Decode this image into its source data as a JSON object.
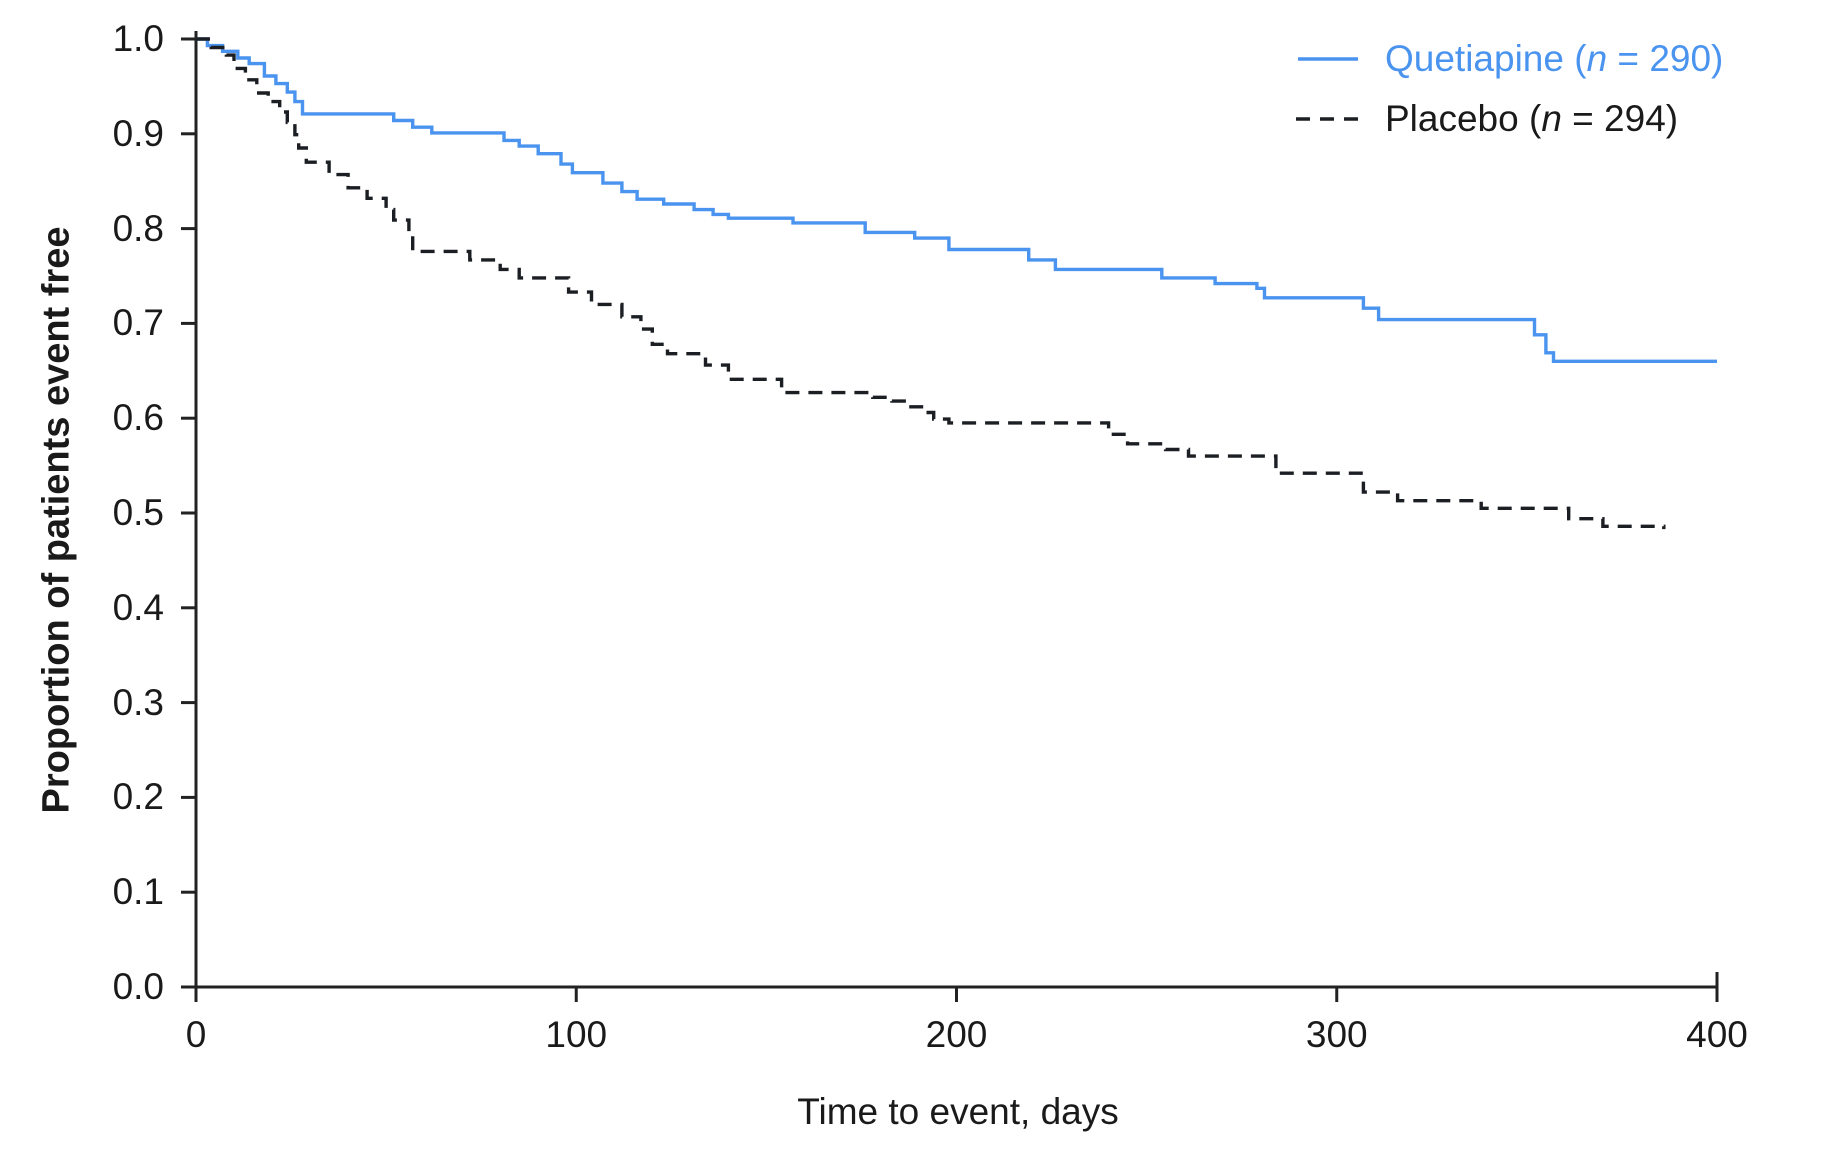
{
  "chart_data": {
    "type": "line",
    "subtype": "kaplan-meier-step",
    "title": "",
    "xlabel": "Time to event, days",
    "ylabel": "Proportion of patients event free",
    "xlim": [
      0,
      400
    ],
    "ylim": [
      0.0,
      1.0
    ],
    "x_tick_labels": [
      "0",
      "100",
      "200",
      "300",
      "400"
    ],
    "y_tick_labels": [
      "0.0",
      "0.1",
      "0.2",
      "0.3",
      "0.4",
      "0.5",
      "0.6",
      "0.7",
      "0.8",
      "0.9",
      "1.0"
    ],
    "grid": false,
    "legend_position": "top-right",
    "series": [
      {
        "name": "Quetiapine",
        "n": 290,
        "label": "Quetiapine (n = 290)",
        "color": "#4a94ef",
        "line_style": "solid",
        "points": [
          [
            0,
            1.0
          ],
          [
            3,
            0.993
          ],
          [
            7,
            0.987
          ],
          [
            11,
            0.98
          ],
          [
            14,
            0.974
          ],
          [
            18,
            0.961
          ],
          [
            21,
            0.953
          ],
          [
            24,
            0.944
          ],
          [
            26,
            0.934
          ],
          [
            28,
            0.921
          ],
          [
            52,
            0.914
          ],
          [
            57,
            0.907
          ],
          [
            62,
            0.901
          ],
          [
            81,
            0.893
          ],
          [
            85,
            0.887
          ],
          [
            90,
            0.879
          ],
          [
            96,
            0.868
          ],
          [
            99,
            0.859
          ],
          [
            107,
            0.848
          ],
          [
            112,
            0.839
          ],
          [
            116,
            0.831
          ],
          [
            123,
            0.826
          ],
          [
            131,
            0.82
          ],
          [
            136,
            0.815
          ],
          [
            140,
            0.811
          ],
          [
            157,
            0.806
          ],
          [
            176,
            0.796
          ],
          [
            189,
            0.79
          ],
          [
            198,
            0.778
          ],
          [
            219,
            0.767
          ],
          [
            226,
            0.757
          ],
          [
            254,
            0.748
          ],
          [
            268,
            0.742
          ],
          [
            279,
            0.737
          ],
          [
            281,
            0.727
          ],
          [
            307,
            0.716
          ],
          [
            311,
            0.704
          ],
          [
            352,
            0.688
          ],
          [
            355,
            0.669
          ],
          [
            357,
            0.66
          ],
          [
            400,
            0.66
          ]
        ]
      },
      {
        "name": "Placebo",
        "n": 294,
        "label": "Placebo (n = 294)",
        "color": "#1b1f23",
        "line_style": "dashed",
        "points": [
          [
            0,
            1.0
          ],
          [
            4,
            0.991
          ],
          [
            8,
            0.983
          ],
          [
            10,
            0.969
          ],
          [
            13,
            0.957
          ],
          [
            16,
            0.943
          ],
          [
            19,
            0.934
          ],
          [
            22,
            0.923
          ],
          [
            24,
            0.912
          ],
          [
            26,
            0.899
          ],
          [
            27,
            0.885
          ],
          [
            29,
            0.87
          ],
          [
            35,
            0.857
          ],
          [
            40,
            0.843
          ],
          [
            45,
            0.832
          ],
          [
            50,
            0.82
          ],
          [
            52,
            0.809
          ],
          [
            56,
            0.794
          ],
          [
            57,
            0.776
          ],
          [
            72,
            0.767
          ],
          [
            80,
            0.757
          ],
          [
            85,
            0.748
          ],
          [
            98,
            0.733
          ],
          [
            104,
            0.72
          ],
          [
            112,
            0.707
          ],
          [
            117,
            0.694
          ],
          [
            120,
            0.678
          ],
          [
            124,
            0.668
          ],
          [
            134,
            0.656
          ],
          [
            140,
            0.641
          ],
          [
            154,
            0.627
          ],
          [
            178,
            0.622
          ],
          [
            183,
            0.618
          ],
          [
            188,
            0.612
          ],
          [
            192,
            0.606
          ],
          [
            194,
            0.599
          ],
          [
            198,
            0.595
          ],
          [
            240,
            0.583
          ],
          [
            245,
            0.573
          ],
          [
            255,
            0.567
          ],
          [
            261,
            0.56
          ],
          [
            284,
            0.542
          ],
          [
            307,
            0.522
          ],
          [
            316,
            0.513
          ],
          [
            338,
            0.505
          ],
          [
            361,
            0.494
          ],
          [
            370,
            0.486
          ],
          [
            386,
            0.483
          ]
        ]
      }
    ]
  },
  "axes": {
    "x_title": "Time to event, days",
    "y_title": "Proportion of patients event free"
  },
  "legend": {
    "items": [
      {
        "name": "Quetiapine (",
        "n_italic": "n",
        "count": " = 290)"
      },
      {
        "name": "Placebo (",
        "n_italic": "n",
        "count": " = 294)"
      }
    ]
  },
  "colors": {
    "quetiapine_blue": "#4a94ef",
    "placebo_black": "#1b1f23",
    "axis": "#222222",
    "text": "#1a1a1a",
    "background": "#ffffff"
  }
}
